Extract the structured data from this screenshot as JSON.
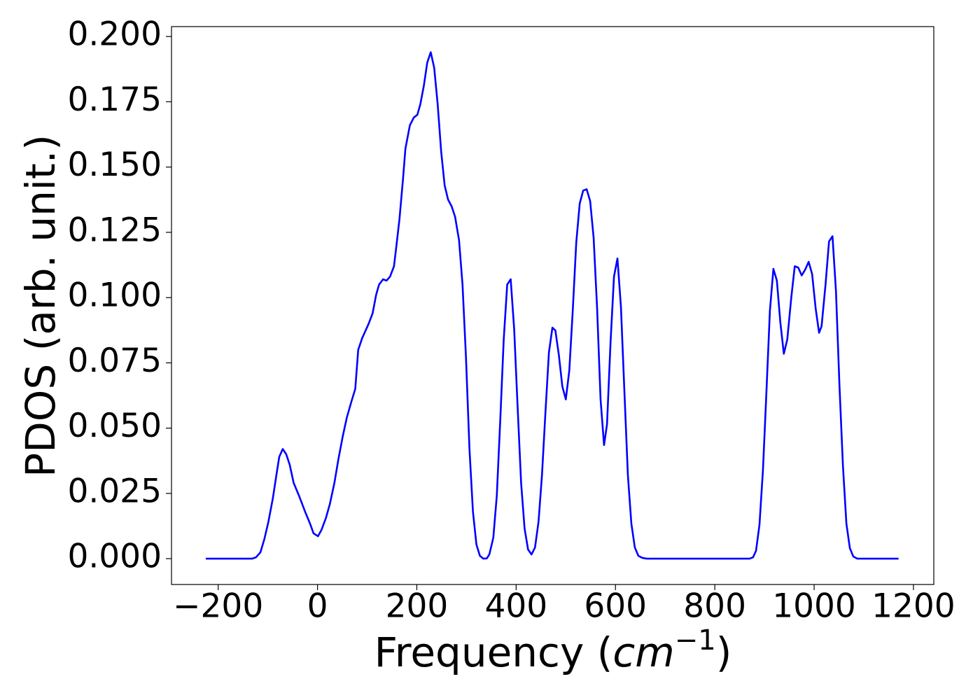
{
  "chart_data": {
    "type": "line",
    "xlabel": {
      "prefix": "Frequency (",
      "italic": "cm",
      "superscript": "−1",
      "suffix": ")"
    },
    "ylabel": "PDOS (arb. unit.)",
    "xlim": [
      -294,
      1241
    ],
    "ylim": [
      -0.0099,
      0.2038
    ],
    "xticks": [
      {
        "value": -200,
        "label": "−200"
      },
      0,
      200,
      400,
      600,
      800,
      1000,
      1200
    ],
    "yticks": [
      {
        "value": 0,
        "label": "0.000"
      },
      {
        "value": 0.025,
        "label": "0.025"
      },
      {
        "value": 0.05,
        "label": "0.050"
      },
      {
        "value": 0.075,
        "label": "0.075"
      },
      {
        "value": 0.1,
        "label": "0.100"
      },
      {
        "value": 0.125,
        "label": "0.125"
      },
      {
        "value": 0.15,
        "label": "0.150"
      },
      {
        "value": 0.175,
        "label": "0.175"
      },
      {
        "value": 0.2,
        "label": "0.200"
      }
    ],
    "x": [
      -225,
      -132,
      -124,
      -115,
      -107,
      -99,
      -90,
      -82,
      -77,
      -70,
      -63,
      -56,
      -48,
      -37,
      -25,
      -15,
      -8,
      1,
      8,
      17,
      25,
      34,
      42,
      51,
      59,
      68,
      76,
      82,
      90,
      103,
      111,
      118,
      124,
      132,
      139,
      146,
      154,
      159,
      165,
      172,
      177,
      186,
      194,
      201,
      207,
      214,
      221,
      228,
      235,
      242,
      249,
      256,
      263,
      270,
      277,
      285,
      292,
      299,
      306,
      313,
      320,
      327,
      334,
      341,
      346,
      354,
      361,
      368,
      375,
      382,
      389,
      396,
      403,
      410,
      417,
      424,
      431,
      438,
      445,
      452,
      459,
      466,
      473,
      479,
      486,
      493,
      500,
      507,
      514,
      521,
      528,
      535,
      542,
      549,
      556,
      563,
      570,
      577,
      583,
      590,
      597,
      604,
      611,
      618,
      625,
      632,
      639,
      646,
      654,
      663,
      870,
      877,
      883,
      890,
      897,
      904,
      911,
      918,
      925,
      932,
      939,
      946,
      954,
      961,
      968,
      975,
      982,
      989,
      996,
      1003,
      1010,
      1015,
      1023,
      1030,
      1037,
      1044,
      1051,
      1058,
      1065,
      1072,
      1079,
      1087,
      1170
    ],
    "series": [
      {
        "color": "#0000ff",
        "values": [
          0,
          0,
          0.0005,
          0.0024,
          0.0075,
          0.014,
          0.023,
          0.033,
          0.039,
          0.042,
          0.04,
          0.036,
          0.029,
          0.024,
          0.018,
          0.0134,
          0.0097,
          0.0086,
          0.011,
          0.0156,
          0.021,
          0.029,
          0.038,
          0.047,
          0.054,
          0.06,
          0.065,
          0.08,
          0.0845,
          0.09,
          0.094,
          0.101,
          0.105,
          0.107,
          0.1065,
          0.108,
          0.112,
          0.12,
          0.13,
          0.145,
          0.157,
          0.166,
          0.169,
          0.17,
          0.174,
          0.181,
          0.19,
          0.194,
          0.188,
          0.174,
          0.156,
          0.143,
          0.1375,
          0.135,
          0.131,
          0.122,
          0.105,
          0.077,
          0.042,
          0.018,
          0.0054,
          0.0011,
          0,
          0.0001,
          0.0016,
          0.008,
          0.024,
          0.053,
          0.084,
          0.105,
          0.107,
          0.088,
          0.058,
          0.029,
          0.0115,
          0.0035,
          0.0016,
          0.0043,
          0.014,
          0.032,
          0.056,
          0.079,
          0.0885,
          0.0874,
          0.078,
          0.066,
          0.061,
          0.072,
          0.095,
          0.121,
          0.136,
          0.141,
          0.1415,
          0.137,
          0.123,
          0.096,
          0.061,
          0.0435,
          0.0515,
          0.0825,
          0.108,
          0.115,
          0.0965,
          0.064,
          0.032,
          0.0134,
          0.0043,
          0.0011,
          0.0003,
          0,
          0,
          0.0005,
          0.003,
          0.013,
          0.034,
          0.064,
          0.095,
          0.111,
          0.1065,
          0.0905,
          0.0785,
          0.084,
          0.1,
          0.112,
          0.1115,
          0.1085,
          0.1107,
          0.1137,
          0.109,
          0.096,
          0.0865,
          0.089,
          0.105,
          0.1215,
          0.1235,
          0.1025,
          0.0665,
          0.0357,
          0.0134,
          0.004,
          0.0008,
          0,
          0
        ]
      }
    ]
  }
}
